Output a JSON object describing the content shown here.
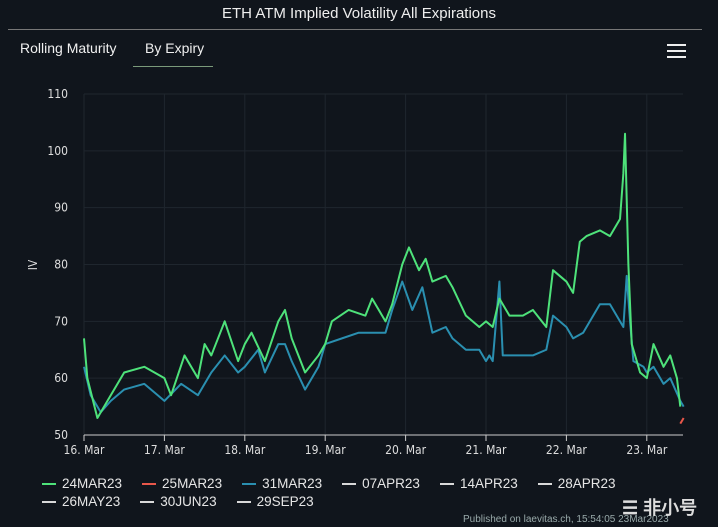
{
  "header": {
    "title": "ETH ATM Implied Volatility All Expirations",
    "tabs": [
      "Rolling Maturity",
      "By Expiry"
    ],
    "active_tab": "By Expiry",
    "menu_icon": "hamburger-icon"
  },
  "credit": "Published on laevitas.ch, 15:54:05 23Mar2023",
  "watermark": "非小号",
  "chart_data": {
    "type": "line",
    "title": "ETH ATM Implied Volatility All Expirations",
    "ylabel": "IV",
    "xlabel": "",
    "ylim": [
      50,
      110
    ],
    "yticks": [
      50,
      60,
      70,
      80,
      90,
      100,
      110
    ],
    "xlim": [
      "2023-03-16 00:00",
      "2023-03-23 11:00"
    ],
    "xticks": [
      "16. Mar",
      "17. Mar",
      "18. Mar",
      "19. Mar",
      "20. Mar",
      "21. Mar",
      "22. Mar",
      "23. Mar"
    ],
    "grid": true,
    "legend": "bottom",
    "series": [
      {
        "name": "24MAR23",
        "color": "#4ee27a",
        "points": [
          [
            "2023-03-16 00:00",
            67
          ],
          [
            "2023-03-16 01:00",
            60
          ],
          [
            "2023-03-16 04:00",
            53
          ],
          [
            "2023-03-16 07:00",
            56
          ],
          [
            "2023-03-16 12:00",
            61
          ],
          [
            "2023-03-16 18:00",
            62
          ],
          [
            "2023-03-17 00:00",
            60
          ],
          [
            "2023-03-17 02:00",
            57
          ],
          [
            "2023-03-17 06:00",
            64
          ],
          [
            "2023-03-17 10:00",
            60
          ],
          [
            "2023-03-17 12:00",
            66
          ],
          [
            "2023-03-17 14:00",
            64
          ],
          [
            "2023-03-17 18:00",
            70
          ],
          [
            "2023-03-17 22:00",
            63
          ],
          [
            "2023-03-18 00:00",
            66
          ],
          [
            "2023-03-18 02:00",
            68
          ],
          [
            "2023-03-18 06:00",
            63
          ],
          [
            "2023-03-18 10:00",
            70
          ],
          [
            "2023-03-18 12:00",
            72
          ],
          [
            "2023-03-18 14:00",
            67
          ],
          [
            "2023-03-18 18:00",
            61
          ],
          [
            "2023-03-18 22:00",
            64
          ],
          [
            "2023-03-19 00:00",
            66
          ],
          [
            "2023-03-19 02:00",
            70
          ],
          [
            "2023-03-19 07:00",
            72
          ],
          [
            "2023-03-19 12:00",
            71
          ],
          [
            "2023-03-19 14:00",
            74
          ],
          [
            "2023-03-19 18:00",
            70
          ],
          [
            "2023-03-19 20:00",
            73
          ],
          [
            "2023-03-19 23:00",
            80
          ],
          [
            "2023-03-20 01:00",
            83
          ],
          [
            "2023-03-20 04:00",
            79
          ],
          [
            "2023-03-20 06:00",
            81
          ],
          [
            "2023-03-20 08:00",
            77
          ],
          [
            "2023-03-20 12:00",
            78
          ],
          [
            "2023-03-20 14:00",
            76
          ],
          [
            "2023-03-20 18:00",
            71
          ],
          [
            "2023-03-20 22:00",
            69
          ],
          [
            "2023-03-21 00:00",
            70
          ],
          [
            "2023-03-21 02:00",
            69
          ],
          [
            "2023-03-21 04:00",
            74
          ],
          [
            "2023-03-21 07:00",
            71
          ],
          [
            "2023-03-21 11:00",
            71
          ],
          [
            "2023-03-21 14:00",
            72
          ],
          [
            "2023-03-21 18:00",
            69
          ],
          [
            "2023-03-21 20:00",
            79
          ],
          [
            "2023-03-22 00:00",
            77
          ],
          [
            "2023-03-22 02:00",
            75
          ],
          [
            "2023-03-22 04:00",
            84
          ],
          [
            "2023-03-22 06:00",
            85
          ],
          [
            "2023-03-22 10:00",
            86
          ],
          [
            "2023-03-22 13:00",
            85
          ],
          [
            "2023-03-22 16:00",
            88
          ],
          [
            "2023-03-22 17:00",
            96
          ],
          [
            "2023-03-22 17:30",
            103
          ],
          [
            "2023-03-22 18:30",
            80
          ],
          [
            "2023-03-22 19:30",
            66
          ],
          [
            "2023-03-22 22:00",
            61
          ],
          [
            "2023-03-23 00:00",
            60
          ],
          [
            "2023-03-23 02:00",
            66
          ],
          [
            "2023-03-23 05:00",
            62
          ],
          [
            "2023-03-23 07:00",
            64
          ],
          [
            "2023-03-23 09:00",
            60
          ],
          [
            "2023-03-23 10:00",
            55
          ]
        ]
      },
      {
        "name": "25MAR23",
        "color": "#e8574a",
        "points": [
          [
            "2023-03-23 10:00",
            52
          ],
          [
            "2023-03-23 11:00",
            53
          ]
        ]
      },
      {
        "name": "31MAR23",
        "color": "#2a8fb0",
        "points": [
          [
            "2023-03-16 00:00",
            62
          ],
          [
            "2023-03-16 02:00",
            57
          ],
          [
            "2023-03-16 05:00",
            54
          ],
          [
            "2023-03-16 08:00",
            56
          ],
          [
            "2023-03-16 12:00",
            58
          ],
          [
            "2023-03-16 18:00",
            59
          ],
          [
            "2023-03-17 00:00",
            56
          ],
          [
            "2023-03-17 05:00",
            59
          ],
          [
            "2023-03-17 10:00",
            57
          ],
          [
            "2023-03-17 14:00",
            61
          ],
          [
            "2023-03-17 18:00",
            64
          ],
          [
            "2023-03-17 22:00",
            61
          ],
          [
            "2023-03-18 00:00",
            62
          ],
          [
            "2023-03-18 04:00",
            65
          ],
          [
            "2023-03-18 06:00",
            61
          ],
          [
            "2023-03-18 10:00",
            66
          ],
          [
            "2023-03-18 12:00",
            66
          ],
          [
            "2023-03-18 14:00",
            63
          ],
          [
            "2023-03-18 18:00",
            58
          ],
          [
            "2023-03-18 22:00",
            62
          ],
          [
            "2023-03-19 00:00",
            66
          ],
          [
            "2023-03-19 05:00",
            67
          ],
          [
            "2023-03-19 10:00",
            68
          ],
          [
            "2023-03-19 14:00",
            68
          ],
          [
            "2023-03-19 18:00",
            68
          ],
          [
            "2023-03-19 20:00",
            72
          ],
          [
            "2023-03-19 23:00",
            77
          ],
          [
            "2023-03-20 02:00",
            72
          ],
          [
            "2023-03-20 05:00",
            76
          ],
          [
            "2023-03-20 08:00",
            68
          ],
          [
            "2023-03-20 12:00",
            69
          ],
          [
            "2023-03-20 14:00",
            67
          ],
          [
            "2023-03-20 18:00",
            65
          ],
          [
            "2023-03-20 22:00",
            65
          ],
          [
            "2023-03-21 00:00",
            63
          ],
          [
            "2023-03-21 01:00",
            64
          ],
          [
            "2023-03-21 02:00",
            63
          ],
          [
            "2023-03-21 04:00",
            77
          ],
          [
            "2023-03-21 05:00",
            64
          ],
          [
            "2023-03-21 10:00",
            64
          ],
          [
            "2023-03-21 14:00",
            64
          ],
          [
            "2023-03-21 18:00",
            65
          ],
          [
            "2023-03-21 20:00",
            71
          ],
          [
            "2023-03-22 00:00",
            69
          ],
          [
            "2023-03-22 02:00",
            67
          ],
          [
            "2023-03-22 05:00",
            68
          ],
          [
            "2023-03-22 10:00",
            73
          ],
          [
            "2023-03-22 13:00",
            73
          ],
          [
            "2023-03-22 17:00",
            69
          ],
          [
            "2023-03-22 18:00",
            78
          ],
          [
            "2023-03-22 19:00",
            70
          ],
          [
            "2023-03-22 20:00",
            63
          ],
          [
            "2023-03-22 23:00",
            62
          ],
          [
            "2023-03-23 00:00",
            61
          ],
          [
            "2023-03-23 02:00",
            62
          ],
          [
            "2023-03-23 05:00",
            59
          ],
          [
            "2023-03-23 07:00",
            60
          ],
          [
            "2023-03-23 10:00",
            56
          ],
          [
            "2023-03-23 11:00",
            55
          ]
        ]
      },
      {
        "name": "07APR23",
        "color": "#d8d8d8",
        "points": []
      },
      {
        "name": "14APR23",
        "color": "#d8d8d8",
        "points": []
      },
      {
        "name": "28APR23",
        "color": "#d8d8d8",
        "points": []
      },
      {
        "name": "26MAY23",
        "color": "#d8d8d8",
        "points": []
      },
      {
        "name": "30JUN23",
        "color": "#d8d8d8",
        "points": []
      },
      {
        "name": "29SEP23",
        "color": "#d8d8d8",
        "points": []
      }
    ]
  }
}
